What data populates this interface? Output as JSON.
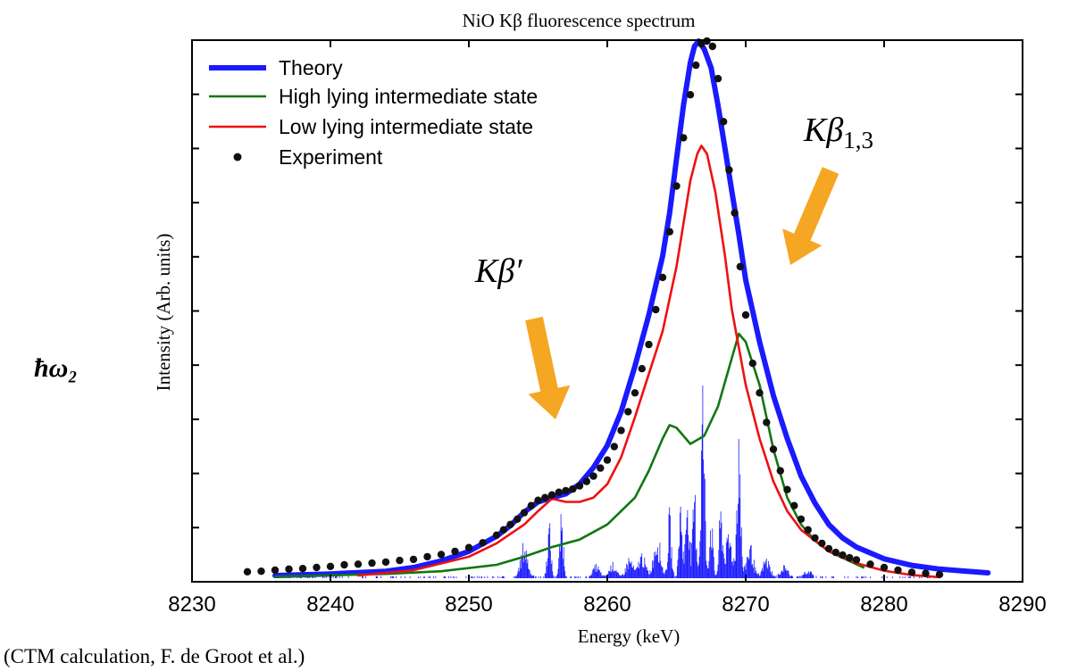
{
  "chart_data": {
    "type": "line",
    "title": "NiO Kβ fluorescence spectrum",
    "xlabel": "Energy (keV)",
    "ylabel": "Intensity (Arb. units)",
    "xlim": [
      8230,
      8290
    ],
    "ylim": [
      0,
      1
    ],
    "xticks": [
      8230,
      8240,
      8250,
      8260,
      8270,
      8280,
      8290
    ],
    "y_tick_labels": false,
    "grid": false,
    "legend_position": "top-left",
    "series": [
      {
        "name": "Theory",
        "style": "thick-line",
        "color": "#1a1aff",
        "x": [
          8236,
          8240,
          8244,
          8246,
          8248,
          8250,
          8252,
          8253,
          8254,
          8255,
          8256,
          8257,
          8258,
          8259,
          8260,
          8261,
          8262,
          8263,
          8264,
          8264.5,
          8265,
          8265.5,
          8266,
          8266.3,
          8266.6,
          8267,
          8267.5,
          8268,
          8268.5,
          8269,
          8269.5,
          8270,
          8271,
          8272,
          8273,
          8274,
          8275,
          8276,
          8277,
          8278,
          8280,
          8282,
          8284,
          8286,
          8287.5
        ],
        "y": [
          0.005,
          0.008,
          0.013,
          0.02,
          0.032,
          0.05,
          0.078,
          0.098,
          0.123,
          0.142,
          0.15,
          0.157,
          0.175,
          0.206,
          0.247,
          0.31,
          0.395,
          0.49,
          0.6,
          0.68,
          0.78,
          0.88,
          0.96,
          0.99,
          1.0,
          0.985,
          0.95,
          0.88,
          0.8,
          0.72,
          0.64,
          0.555,
          0.44,
          0.34,
          0.26,
          0.19,
          0.14,
          0.1,
          0.075,
          0.058,
          0.036,
          0.024,
          0.017,
          0.013,
          0.01
        ]
      },
      {
        "name": "High lying intermediate state",
        "style": "line",
        "color": "#117711",
        "x": [
          8236,
          8244,
          8248,
          8252,
          8254,
          8256,
          8258,
          8260,
          8262,
          8263,
          8264,
          8264.5,
          8265,
          8266,
          8267,
          8268,
          8269,
          8269.5,
          8270,
          8271,
          8272,
          8273,
          8274,
          8275,
          8276,
          8278.5
        ],
        "y": [
          0.003,
          0.008,
          0.013,
          0.025,
          0.04,
          0.058,
          0.072,
          0.1,
          0.15,
          0.2,
          0.26,
          0.285,
          0.28,
          0.25,
          0.265,
          0.32,
          0.41,
          0.455,
          0.44,
          0.36,
          0.24,
          0.15,
          0.1,
          0.07,
          0.05,
          0.02
        ]
      },
      {
        "name": "Low lying intermediate state",
        "style": "line",
        "color": "#ee1111",
        "x": [
          8242,
          8246,
          8250,
          8252,
          8254,
          8255,
          8256,
          8257,
          8258,
          8259,
          8260,
          8261,
          8262,
          8263,
          8264,
          8265,
          8265.5,
          8266,
          8266.5,
          8266.8,
          8267.2,
          8267.8,
          8268.5,
          8269,
          8270,
          8271,
          8272,
          8273,
          8274,
          8276,
          8278,
          8280,
          8282,
          8284
        ],
        "y": [
          0.005,
          0.015,
          0.04,
          0.065,
          0.1,
          0.125,
          0.148,
          0.142,
          0.142,
          0.15,
          0.175,
          0.225,
          0.3,
          0.38,
          0.46,
          0.58,
          0.66,
          0.74,
          0.79,
          0.805,
          0.79,
          0.72,
          0.6,
          0.5,
          0.36,
          0.26,
          0.18,
          0.125,
          0.09,
          0.05,
          0.028,
          0.014,
          0.006,
          0.002
        ]
      },
      {
        "name": "Experiment",
        "style": "markers",
        "color": "#111111",
        "x": [
          8234,
          8235,
          8236,
          8237,
          8238,
          8239,
          8240,
          8241,
          8242,
          8243,
          8244,
          8245,
          8246,
          8247,
          8248,
          8249,
          8250,
          8251,
          8252,
          8252.5,
          8253,
          8253.5,
          8254,
          8254.5,
          8255,
          8255.5,
          8256,
          8256.5,
          8257,
          8257.5,
          8258,
          8258.5,
          8259,
          8259.5,
          8260,
          8260.5,
          8261,
          8261.5,
          8262,
          8262.5,
          8263,
          8263.5,
          8264,
          8264.5,
          8265,
          8265.5,
          8266,
          8266.4,
          8266.8,
          8267.2,
          8267.6,
          8268,
          8268.4,
          8268.8,
          8269.2,
          8269.6,
          8270,
          8270.5,
          8271,
          8271.5,
          8272,
          8272.5,
          8273,
          8273.5,
          8274,
          8274.5,
          8275,
          8275.5,
          8276,
          8276.5,
          8277,
          8277.5,
          8278,
          8279,
          8280,
          8281,
          8282,
          8283,
          8284
        ],
        "y": [
          0.012,
          0.013,
          0.015,
          0.017,
          0.018,
          0.02,
          0.022,
          0.025,
          0.026,
          0.028,
          0.03,
          0.033,
          0.035,
          0.04,
          0.044,
          0.05,
          0.057,
          0.066,
          0.08,
          0.09,
          0.1,
          0.11,
          0.122,
          0.135,
          0.145,
          0.15,
          0.155,
          0.16,
          0.163,
          0.166,
          0.172,
          0.18,
          0.19,
          0.205,
          0.22,
          0.245,
          0.275,
          0.31,
          0.345,
          0.39,
          0.435,
          0.5,
          0.56,
          0.645,
          0.73,
          0.82,
          0.9,
          0.955,
          0.995,
          1.0,
          0.99,
          0.93,
          0.85,
          0.76,
          0.68,
          0.58,
          0.49,
          0.4,
          0.345,
          0.29,
          0.24,
          0.2,
          0.165,
          0.135,
          0.11,
          0.09,
          0.075,
          0.065,
          0.055,
          0.048,
          0.043,
          0.038,
          0.034,
          0.026,
          0.02,
          0.015,
          0.011,
          0.009,
          0.007
        ]
      }
    ],
    "stick_spectrum": {
      "color": "#1a1aff",
      "peaks": [
        {
          "x": 8254.0,
          "h": 0.07
        },
        {
          "x": 8255.8,
          "h": 0.11
        },
        {
          "x": 8256.7,
          "h": 0.13
        },
        {
          "x": 8259.2,
          "h": 0.025
        },
        {
          "x": 8260.4,
          "h": 0.03
        },
        {
          "x": 8261.6,
          "h": 0.04
        },
        {
          "x": 8262.5,
          "h": 0.05
        },
        {
          "x": 8263.6,
          "h": 0.09
        },
        {
          "x": 8264.5,
          "h": 0.13
        },
        {
          "x": 8265.3,
          "h": 0.16
        },
        {
          "x": 8265.8,
          "h": 0.2
        },
        {
          "x": 8266.3,
          "h": 0.18
        },
        {
          "x": 8266.9,
          "h": 0.41
        },
        {
          "x": 8267.5,
          "h": 0.13
        },
        {
          "x": 8268.2,
          "h": 0.14
        },
        {
          "x": 8268.8,
          "h": 0.09
        },
        {
          "x": 8269.5,
          "h": 0.34
        },
        {
          "x": 8270.3,
          "h": 0.07
        },
        {
          "x": 8271.5,
          "h": 0.04
        },
        {
          "x": 8272.8,
          "h": 0.025
        },
        {
          "x": 8274.5,
          "h": 0.015
        }
      ]
    },
    "annotations": [
      {
        "text_base": "Kβ",
        "text_suffix": "′",
        "target_x": 8256.5,
        "target_y": 0.3
      },
      {
        "text_base": "Kβ",
        "text_suffix": "1,3",
        "target_x": 8273,
        "target_y": 0.6
      }
    ],
    "arrow_color": "#f5a623"
  },
  "side_label": "ħω₂",
  "caption": "(CTM calculation, F. de Groot et al.)"
}
